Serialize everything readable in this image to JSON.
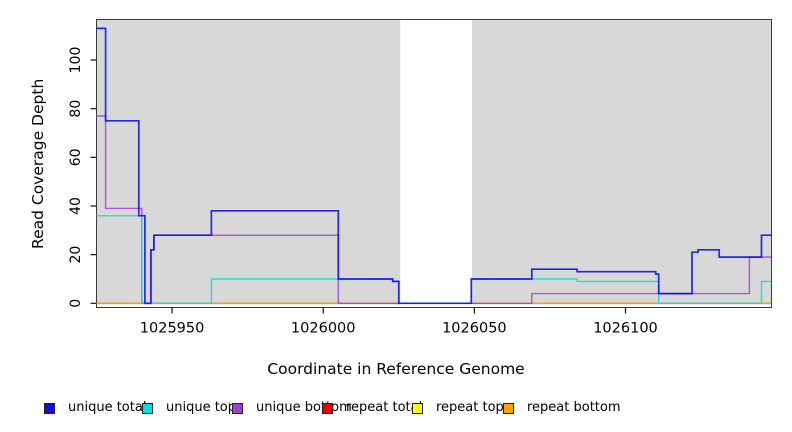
{
  "figure": {
    "xlabel": "Coordinate in Reference Genome",
    "ylabel": "Read Coverage Depth"
  },
  "chart_data": {
    "type": "line",
    "step": "after",
    "title": "",
    "xlabel": "Coordinate in Reference Genome",
    "ylabel": "Read Coverage Depth",
    "xlim": [
      1025925,
      1026148.3
    ],
    "ylim": [
      0,
      113
    ],
    "x_ticks": [
      "1025950",
      "1026000",
      "1026050",
      "1026100"
    ],
    "x_tick_values": [
      1025950,
      1026000,
      1026050,
      1026100
    ],
    "y_ticks": [
      "0",
      "20",
      "40",
      "60",
      "80",
      "100"
    ],
    "y_tick_values": [
      0,
      20,
      40,
      60,
      80,
      100
    ],
    "grid": false,
    "band_color": "#D8D8D8",
    "background_bands": [
      {
        "x0": 1025925,
        "x1": 1026025.5
      },
      {
        "x0": 1026049.2,
        "x1": 1026148.3
      }
    ],
    "legend_position": "bottom",
    "legend": [
      {
        "label": "unique total",
        "color": "#0D0DE8"
      },
      {
        "label": "unique top",
        "color": "#00E0E6"
      },
      {
        "label": "unique bottom",
        "color": "#9F3FD4"
      },
      {
        "label": "repeat total",
        "color": "#E60000"
      },
      {
        "label": "repeat top",
        "color": "#FFFF00"
      },
      {
        "label": "repeat bottom",
        "color": "#FFA200"
      }
    ],
    "series": [
      {
        "name": "repeat total",
        "color": "#E60000",
        "width": 1.4,
        "opacity": 1,
        "points": [
          [
            1025925,
            0
          ]
        ]
      },
      {
        "name": "repeat top",
        "color": "#FFFF00",
        "width": 1.4,
        "opacity": 1,
        "points": [
          [
            1025925,
            0
          ]
        ]
      },
      {
        "name": "repeat bottom",
        "color": "#FFA200",
        "width": 1.5,
        "opacity": 1,
        "points": [
          [
            1025925,
            0
          ]
        ]
      },
      {
        "name": "unique bottom",
        "color": "#9F3FD4",
        "width": 1.4,
        "opacity": 0.85,
        "points": [
          [
            1025925,
            77
          ],
          [
            1025928,
            39
          ],
          [
            1025940,
            0
          ],
          [
            1025943,
            22
          ],
          [
            1025944,
            28
          ],
          [
            1026005,
            0
          ],
          [
            1026069,
            4
          ],
          [
            1026141,
            19
          ]
        ]
      },
      {
        "name": "unique top",
        "color": "#00E0E6",
        "width": 1.4,
        "opacity": 0.85,
        "points": [
          [
            1025925,
            36
          ],
          [
            1025940,
            0
          ],
          [
            1025963,
            10
          ],
          [
            1026023,
            9
          ],
          [
            1026025,
            0
          ],
          [
            1026049,
            10
          ],
          [
            1026084,
            9
          ],
          [
            1026111,
            0
          ],
          [
            1026145,
            9
          ]
        ]
      },
      {
        "name": "unique total",
        "color": "#0D0DE8",
        "width": 1.7,
        "opacity": 0.88,
        "points": [
          [
            1025925,
            113
          ],
          [
            1025928,
            75
          ],
          [
            1025939,
            36
          ],
          [
            1025941,
            0
          ],
          [
            1025943,
            22
          ],
          [
            1025944,
            28
          ],
          [
            1025963,
            38
          ],
          [
            1026005,
            10
          ],
          [
            1026023,
            9
          ],
          [
            1026025,
            0
          ],
          [
            1026049,
            10
          ],
          [
            1026069,
            14
          ],
          [
            1026084,
            13
          ],
          [
            1026110,
            12
          ],
          [
            1026111,
            4
          ],
          [
            1026122,
            21
          ],
          [
            1026124,
            22
          ],
          [
            1026131,
            19
          ],
          [
            1026145,
            28
          ]
        ]
      }
    ]
  }
}
